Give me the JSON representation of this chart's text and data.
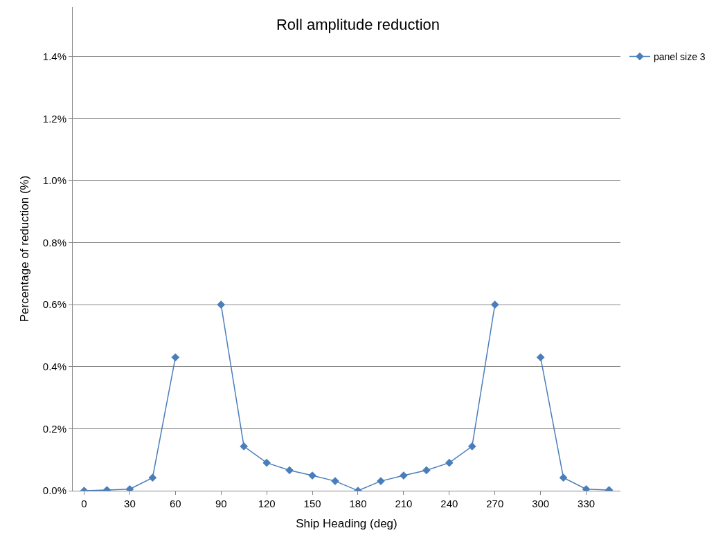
{
  "chart_data": {
    "type": "line",
    "title": "Roll amplitude reduction",
    "xlabel": "Ship Heading (deg)",
    "ylabel": "Percentage of reduction (%)",
    "x": [
      0,
      15,
      30,
      45,
      60,
      75,
      90,
      105,
      120,
      135,
      150,
      165,
      180,
      195,
      210,
      225,
      240,
      255,
      270,
      285,
      300,
      315,
      330,
      345
    ],
    "series": [
      {
        "name": "panel size 3",
        "color": "#4a7ebb",
        "values": [
          0,
          0.002,
          0.005,
          0.042,
          0.43,
          null,
          0.6,
          0.143,
          0.09,
          0.066,
          0.049,
          0.031,
          0,
          0.031,
          0.049,
          0.066,
          0.09,
          0.143,
          0.6,
          null,
          0.43,
          0.042,
          0.005,
          0.002
        ]
      }
    ],
    "xlim": [
      -7.5,
      352.5
    ],
    "xticks": [
      0,
      30,
      60,
      90,
      120,
      150,
      180,
      210,
      240,
      270,
      300,
      330
    ],
    "ylim": [
      0,
      1.56
    ],
    "yticks": [
      {
        "value": 0,
        "label": "0.0%"
      },
      {
        "value": 0.2,
        "label": "0.2%"
      },
      {
        "value": 0.4,
        "label": "0.4%"
      },
      {
        "value": 0.6,
        "label": "0.6%"
      },
      {
        "value": 0.8,
        "label": "0.8%"
      },
      {
        "value": 1.0,
        "label": "1.0%"
      },
      {
        "value": 1.2,
        "label": "1.2%"
      },
      {
        "value": 1.4,
        "label": "1.4%"
      }
    ],
    "grid": "y",
    "legend": "top right",
    "marker": "diamond",
    "line_style": "solid"
  }
}
